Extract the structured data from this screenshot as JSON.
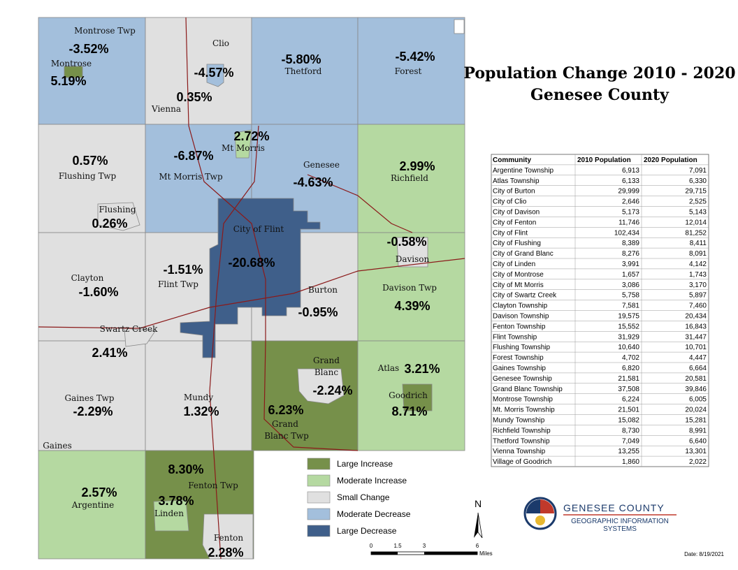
{
  "title": {
    "line1": "Population Change 2010 - 2020",
    "line2": "Genesee County"
  },
  "map_labels": [
    {
      "text": "Montrose Twp"
    },
    {
      "text": "Clio"
    },
    {
      "text": "Thetford"
    },
    {
      "text": "Forest"
    },
    {
      "text": "Montrose"
    },
    {
      "text": "Vienna"
    },
    {
      "text": "Mt Morris"
    },
    {
      "text": "Genesee"
    },
    {
      "text": "Richfield"
    },
    {
      "text": "Flushing Twp"
    },
    {
      "text": "Mt Morris Twp"
    },
    {
      "text": "Flushing"
    },
    {
      "text": "City of Flint"
    },
    {
      "text": "Davison"
    },
    {
      "text": "Clayton"
    },
    {
      "text": "Flint Twp"
    },
    {
      "text": "Burton"
    },
    {
      "text": "Davison Twp"
    },
    {
      "text": "Swartz Creek"
    },
    {
      "text": "Grand"
    },
    {
      "text": "Blanc"
    },
    {
      "text": "Atlas"
    },
    {
      "text": "Goodrich"
    },
    {
      "text": "Gaines Twp"
    },
    {
      "text": "Mundy"
    },
    {
      "text": "Grand"
    },
    {
      "text": "Blanc Twp"
    },
    {
      "text": "Gaines"
    },
    {
      "text": "Fenton Twp"
    },
    {
      "text": "Argentine"
    },
    {
      "text": "Linden"
    },
    {
      "text": "Fenton"
    }
  ],
  "map_changes": [
    {
      "text": "-3.52%"
    },
    {
      "text": "5.19%"
    },
    {
      "text": "-4.57%"
    },
    {
      "text": "0.35%"
    },
    {
      "text": "-5.80%"
    },
    {
      "text": "-5.42%"
    },
    {
      "text": "2.72%"
    },
    {
      "text": "-6.87%"
    },
    {
      "text": "0.57%"
    },
    {
      "text": "2.99%"
    },
    {
      "text": "-4.63%"
    },
    {
      "text": "0.26%"
    },
    {
      "text": "-20.68%"
    },
    {
      "text": "-0.58%"
    },
    {
      "text": "-1.51%"
    },
    {
      "text": "-1.60%"
    },
    {
      "text": "-0.95%"
    },
    {
      "text": "4.39%"
    },
    {
      "text": "2.41%"
    },
    {
      "text": "3.21%"
    },
    {
      "text": "-2.24%"
    },
    {
      "text": "-2.29%"
    },
    {
      "text": "1.32%"
    },
    {
      "text": "6.23%"
    },
    {
      "text": "8.71%"
    },
    {
      "text": "8.30%"
    },
    {
      "text": "2.57%"
    },
    {
      "text": "3.78%"
    },
    {
      "text": "2.28%"
    }
  ],
  "legend": [
    {
      "label": "Large Increase",
      "color": "#76904a"
    },
    {
      "label": "Moderate Increase",
      "color": "#b5d9a1"
    },
    {
      "label": "Small Change",
      "color": "#e0e0e0"
    },
    {
      "label": "Moderate Decrease",
      "color": "#a3bfdc"
    },
    {
      "label": "Large Decrease",
      "color": "#3f5f8a"
    }
  ],
  "table": {
    "header": [
      "Community",
      "2010 Population",
      "2020 Population"
    ],
    "rows": [
      [
        "Argentine Township",
        "6,913",
        "7,091"
      ],
      [
        "Atlas Township",
        "6,133",
        "6,330"
      ],
      [
        "City of Burton",
        "29,999",
        "29,715"
      ],
      [
        "City of Clio",
        "2,646",
        "2,525"
      ],
      [
        "City of Davison",
        "5,173",
        "5,143"
      ],
      [
        "City of Fenton",
        "11,746",
        "12,014"
      ],
      [
        "City of Flint",
        "102,434",
        "81,252"
      ],
      [
        "City of Flushing",
        "8,389",
        "8,411"
      ],
      [
        "City of Grand Blanc",
        "8,276",
        "8,091"
      ],
      [
        "City of Linden",
        "3,991",
        "4,142"
      ],
      [
        "City of Montrose",
        "1,657",
        "1,743"
      ],
      [
        "City of Mt Morris",
        "3,086",
        "3,170"
      ],
      [
        "City of Swartz Creek",
        "5,758",
        "5,897"
      ],
      [
        "Clayton Township",
        "7,581",
        "7,460"
      ],
      [
        "Davison Township",
        "19,575",
        "20,434"
      ],
      [
        "Fenton Township",
        "15,552",
        "16,843"
      ],
      [
        "Flint Township",
        "31,929",
        "31,447"
      ],
      [
        "Flushing Township",
        "10,640",
        "10,701"
      ],
      [
        "Forest Township",
        "4,702",
        "4,447"
      ],
      [
        "Gaines Township",
        "6,820",
        "6,664"
      ],
      [
        "Genesee Township",
        "21,581",
        "20,581"
      ],
      [
        "Grand Blanc Township",
        "37,508",
        "39,846"
      ],
      [
        "Montrose Township",
        "6,224",
        "6,005"
      ],
      [
        "Mt. Morris Township",
        "21,501",
        "20,024"
      ],
      [
        "Mundy Township",
        "15,082",
        "15,281"
      ],
      [
        "Richfield Township",
        "8,730",
        "8,991"
      ],
      [
        "Thetford Township",
        "7,049",
        "6,640"
      ],
      [
        "Vienna Township",
        "13,255",
        "13,301"
      ],
      [
        "Village of Goodrich",
        "1,860",
        "2,022"
      ]
    ]
  },
  "north": "N",
  "scale": {
    "ticks": [
      "0",
      "1.5",
      "3",
      "6"
    ],
    "unit": "Miles"
  },
  "logo": {
    "line1": "GENESEE COUNTY",
    "line2": "GEOGRAPHIC INFORMATION",
    "line3": "SYSTEMS"
  },
  "date": "Date: 8/19/2021"
}
